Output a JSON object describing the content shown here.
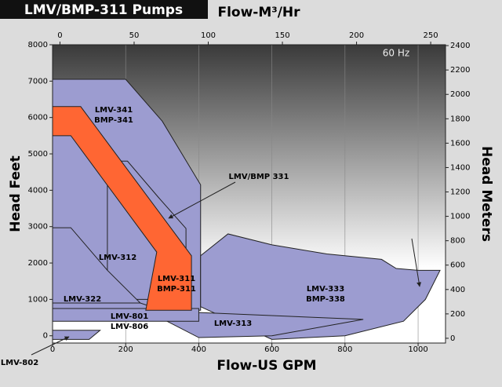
{
  "chart_data": {
    "type": "region",
    "title": "LMV/BMP-311 Pumps",
    "annotation": "60 Hz",
    "x_label": "Flow-US GPM",
    "x2_label": "Flow-M³/Hr",
    "y_label": "Head Feet",
    "y2_label": "Head Meters",
    "xlim": [
      0,
      1075
    ],
    "xticks": [
      0,
      200,
      400,
      600,
      800,
      1000
    ],
    "x2lim": [
      -5,
      260
    ],
    "x2ticks": [
      0,
      50,
      100,
      150,
      200,
      250
    ],
    "ylim": [
      -200,
      8000
    ],
    "yticks": [
      0,
      1000,
      2000,
      3000,
      4000,
      5000,
      6000,
      7000,
      8000
    ],
    "y2lim": [
      -39,
      2407
    ],
    "y2ticks": [
      0,
      200,
      400,
      600,
      800,
      1000,
      1200,
      1400,
      1600,
      1800,
      2000,
      2200,
      2400
    ],
    "grid": true,
    "regions": [
      {
        "label": [
          "LMV-341",
          "BMP-341"
        ],
        "color": "#9c9cd0",
        "x": [
          0,
          200,
          300,
          405,
          405,
          0
        ],
        "y": [
          7050,
          7050,
          5900,
          4150,
          700,
          700
        ]
      },
      {
        "label": [
          "LMV/BMP 331"
        ],
        "color": "#9c9cd0",
        "x": [
          150,
          205,
          290,
          365,
          365,
          150
        ],
        "y": [
          4800,
          4800,
          3800,
          2950,
          1000,
          1000
        ]
      },
      {
        "label": [
          "LMV-312"
        ],
        "color": "#9c9cd0",
        "x": [
          0,
          50,
          150,
          240,
          0
        ],
        "y": [
          2970,
          2970,
          1800,
          900,
          900
        ]
      },
      {
        "label": [
          "LMV-322"
        ],
        "color": "#9c9cd0",
        "x": [
          0,
          240,
          300,
          0
        ],
        "y": [
          900,
          900,
          700,
          700
        ]
      },
      {
        "label": [
          "LMV-333",
          "BMP-338"
        ],
        "color": "#9c9cd0",
        "x": [
          405,
          480,
          600,
          750,
          900,
          940,
          1000,
          1060,
          1020,
          960,
          800,
          600,
          405
        ],
        "y": [
          2200,
          2800,
          2500,
          2250,
          2100,
          1850,
          1800,
          1800,
          1000,
          400,
          0,
          -100,
          800
        ]
      },
      {
        "label": [
          "LMV-313"
        ],
        "color": "#9c9cd0",
        "x": [
          255,
          850,
          600,
          400
        ],
        "y": [
          700,
          450,
          0,
          -50
        ]
      },
      {
        "label": [
          "LMV-801",
          "LMV-806"
        ],
        "color": "#9c9cd0",
        "x": [
          0,
          400,
          400,
          0
        ],
        "y": [
          750,
          750,
          400,
          400
        ]
      },
      {
        "label": [
          "LMV-311",
          "BMP-311"
        ],
        "color": "#ff6633",
        "x": [
          0,
          77,
          380,
          380,
          255,
          285,
          50,
          0
        ],
        "y": [
          6300,
          6300,
          2200,
          700,
          700,
          2300,
          5500,
          5500
        ]
      },
      {
        "label": [
          "LMV-802"
        ],
        "color": "#9c9cd0",
        "x": [
          0,
          130,
          100,
          0
        ],
        "y": [
          150,
          150,
          -100,
          -100
        ]
      }
    ]
  }
}
